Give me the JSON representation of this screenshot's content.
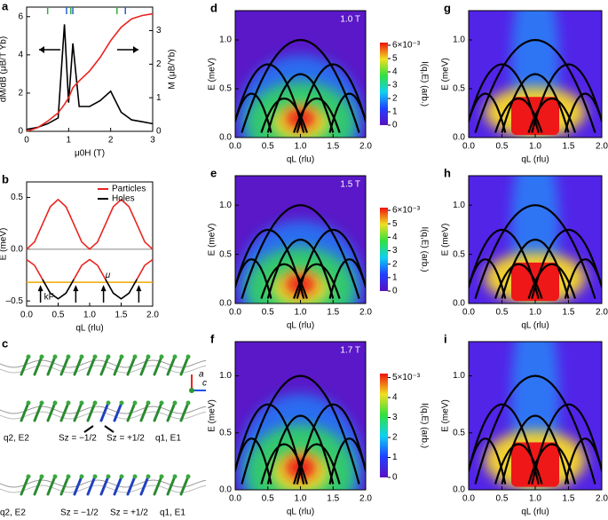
{
  "chart_data": [
    {
      "type": "line",
      "panel": "a",
      "xlabel": "μ0H (T)",
      "ylabel": "dM/dB (μB/T Yb)",
      "y2label": "M (μB/Yb)",
      "xlim": [
        0,
        3
      ],
      "xticks": [
        0,
        1,
        2,
        3
      ],
      "ylim": [
        0,
        6.5
      ],
      "yticks": [
        0,
        2,
        4,
        6
      ],
      "y2lim": [
        0,
        3.7
      ],
      "y2ticks": [
        0,
        1,
        2,
        3
      ],
      "x": [
        0,
        0.25,
        0.5,
        0.75,
        0.9,
        1.0,
        1.1,
        1.25,
        1.5,
        1.75,
        2.0,
        2.25,
        2.5,
        2.75,
        3.0
      ],
      "series": [
        {
          "color": "#000000",
          "values": [
            0.1,
            0.2,
            0.4,
            0.7,
            5.6,
            1.5,
            4.6,
            1.3,
            1.3,
            1.6,
            2.1,
            1.0,
            0.6,
            0.5,
            0.4
          ]
        },
        {
          "color": "#e8251f",
          "axis": "y2",
          "values": [
            0,
            0.1,
            0.3,
            0.55,
            0.8,
            1.0,
            1.3,
            1.5,
            1.8,
            2.2,
            2.7,
            3.1,
            3.35,
            3.45,
            3.5
          ]
        }
      ]
    },
    {
      "type": "line",
      "panel": "b",
      "xlabel": "qL (rlu)",
      "ylabel": "E (meV)",
      "legend": "upper right",
      "xlim": [
        0,
        2
      ],
      "xticks": [
        {
          "value": 0,
          "label": "0.0"
        },
        {
          "value": 0.5,
          "label": "0.5"
        },
        {
          "value": 1,
          "label": "1.0"
        },
        {
          "value": 1.5,
          "label": "1.5"
        },
        {
          "value": 2,
          "label": "2.0"
        }
      ],
      "ylim": [
        -0.55,
        0.65
      ],
      "yticks": [
        {
          "value": -0.5,
          "label": "–0.5"
        },
        {
          "value": 0,
          "label": "0.0"
        },
        {
          "value": 0.5,
          "label": "0.5"
        }
      ],
      "mu": -0.32,
      "mu_label": "μ",
      "kF_label": "kF",
      "kF": [
        0.22,
        0.78,
        1.22,
        1.78
      ],
      "x": [
        0,
        0.125,
        0.25,
        0.375,
        0.5,
        0.625,
        0.75,
        0.875,
        1,
        1.125,
        1.25,
        1.375,
        1.5,
        1.625,
        1.75,
        1.875,
        2
      ],
      "series": [
        {
          "name": "Particles",
          "color": "#e8251f",
          "values": [
            0,
            0.07,
            0.24,
            0.41,
            0.48,
            0.41,
            0.24,
            0.07,
            0,
            0.07,
            0.24,
            0.41,
            0.48,
            0.41,
            0.24,
            0.07,
            0
          ]
        },
        {
          "name": "Holes",
          "color": "#000000",
          "values": [
            null,
            null,
            -0.29,
            -0.424,
            -0.48,
            -0.424,
            -0.29,
            null,
            null,
            null,
            -0.29,
            -0.424,
            -0.48,
            -0.424,
            -0.29,
            null,
            null
          ]
        },
        {
          "color": "#e8251f",
          "values": [
            -0.1,
            -0.156,
            -0.29,
            null,
            null,
            null,
            -0.29,
            -0.156,
            -0.1,
            -0.156,
            -0.29,
            null,
            null,
            null,
            -0.29,
            -0.156,
            -0.1
          ]
        }
      ]
    },
    {
      "type": "heatmap",
      "panel": "d",
      "field": "1.0 T",
      "xlabel": "qL (rlu)",
      "ylabel": "E (meV)",
      "style": "data",
      "xlim": [
        0,
        2
      ],
      "xticks": [
        {
          "value": 0,
          "label": "0.0"
        },
        {
          "value": 0.5,
          "label": "0.5"
        },
        {
          "value": 1,
          "label": "1.0"
        },
        {
          "value": 1.5,
          "label": "1.5"
        },
        {
          "value": 2,
          "label": "2.0"
        }
      ],
      "ylim": [
        0,
        1.3
      ],
      "yticks": [
        {
          "value": 0,
          "label": "0.0"
        },
        {
          "value": 0.5,
          "label": "0.5"
        },
        {
          "value": 1,
          "label": "1.0"
        }
      ],
      "colorbar": {
        "label": "I(q,E) (arb.)",
        "lim": [
          0,
          6.2
        ],
        "ticks": [
          0,
          1,
          2,
          3,
          4,
          5,
          {
            "value": 6,
            "label": "6×10⁻³"
          }
        ]
      }
    },
    {
      "type": "heatmap",
      "panel": "e",
      "field": "1.5 T",
      "xlabel": "qL (rlu)",
      "ylabel": "E (meV)",
      "style": "data",
      "xlim": [
        0,
        2
      ],
      "xticks": [
        {
          "value": 0,
          "label": "0.0"
        },
        {
          "value": 0.5,
          "label": "0.5"
        },
        {
          "value": 1,
          "label": "1.0"
        },
        {
          "value": 1.5,
          "label": "1.5"
        },
        {
          "value": 2,
          "label": "2.0"
        }
      ],
      "ylim": [
        0,
        1.3
      ],
      "yticks": [
        {
          "value": 0,
          "label": "0.0"
        },
        {
          "value": 0.5,
          "label": "0.5"
        },
        {
          "value": 1,
          "label": "1.0"
        }
      ],
      "colorbar": {
        "label": "I(q,E) (arb.)",
        "lim": [
          0,
          6.2
        ],
        "ticks": [
          0,
          1,
          2,
          3,
          4,
          5,
          {
            "value": 6,
            "label": "6×10⁻³"
          }
        ]
      }
    },
    {
      "type": "heatmap",
      "panel": "f",
      "field": "1.7 T",
      "xlabel": "qL (rlu)",
      "ylabel": "E (meV)",
      "style": "data",
      "xlim": [
        0,
        2
      ],
      "xticks": [
        {
          "value": 0,
          "label": "0.0"
        },
        {
          "value": 0.5,
          "label": "0.5"
        },
        {
          "value": 1,
          "label": "1.0"
        },
        {
          "value": 1.5,
          "label": "1.5"
        },
        {
          "value": 2,
          "label": "2.0"
        }
      ],
      "ylim": [
        0,
        1.3
      ],
      "yticks": [
        {
          "value": 0,
          "label": "0.0"
        },
        {
          "value": 0.5,
          "label": "0.5"
        },
        {
          "value": 1,
          "label": "1.0"
        }
      ],
      "colorbar": {
        "label": "I(q,E) (arb.)",
        "lim": [
          0,
          5.2
        ],
        "ticks": [
          0,
          1,
          2,
          3,
          4,
          {
            "value": 5,
            "label": "5×10⁻³"
          }
        ]
      }
    },
    {
      "type": "heatmap",
      "panel": "g",
      "xlabel": "qL (rlu)",
      "ylabel": "E (meV)",
      "style": "model",
      "xlim": [
        0,
        2
      ],
      "xticks": [
        {
          "value": 0,
          "label": "0.0"
        },
        {
          "value": 0.5,
          "label": "0.5"
        },
        {
          "value": 1,
          "label": "1.0"
        },
        {
          "value": 1.5,
          "label": "1.5"
        },
        {
          "value": 2,
          "label": "2.0"
        }
      ],
      "ylim": [
        0,
        1.3
      ],
      "yticks": [
        {
          "value": 0,
          "label": "0.0"
        },
        {
          "value": 0.5,
          "label": "0.5"
        },
        {
          "value": 1,
          "label": "1.0"
        }
      ]
    },
    {
      "type": "heatmap",
      "panel": "h",
      "xlabel": "qL (rlu)",
      "ylabel": "E (meV)",
      "style": "model",
      "xlim": [
        0,
        2
      ],
      "xticks": [
        {
          "value": 0,
          "label": "0.0"
        },
        {
          "value": 0.5,
          "label": "0.5"
        },
        {
          "value": 1,
          "label": "1.0"
        },
        {
          "value": 1.5,
          "label": "1.5"
        },
        {
          "value": 2,
          "label": "2.0"
        }
      ],
      "ylim": [
        0,
        1.3
      ],
      "yticks": [
        {
          "value": 0,
          "label": "0.0"
        },
        {
          "value": 0.5,
          "label": "0.5"
        },
        {
          "value": 1,
          "label": "1.0"
        }
      ]
    },
    {
      "type": "heatmap",
      "panel": "i",
      "xlabel": "qL (rlu)",
      "ylabel": "E (meV)",
      "style": "model",
      "xlim": [
        0,
        2
      ],
      "xticks": [
        {
          "value": 0,
          "label": "0.0"
        },
        {
          "value": 0.5,
          "label": "0.5"
        },
        {
          "value": 1,
          "label": "1.0"
        },
        {
          "value": 1.5,
          "label": "1.5"
        },
        {
          "value": 2,
          "label": "2.0"
        }
      ],
      "ylim": [
        0,
        1.3
      ],
      "yticks": [
        {
          "value": 0,
          "label": "0.0"
        },
        {
          "value": 0.5,
          "label": "0.5"
        },
        {
          "value": 1,
          "label": "1.0"
        }
      ]
    }
  ],
  "diagram": {
    "panel": "c",
    "axes": [
      "a",
      "c"
    ],
    "row2": [
      "q2, E2",
      "Sz = −1/2",
      "Sz = +1/2",
      "q1, E1"
    ],
    "row3": [
      "q2, E2",
      "Sz = −1/2",
      "Sz = +1/2",
      "q1, E1"
    ]
  }
}
